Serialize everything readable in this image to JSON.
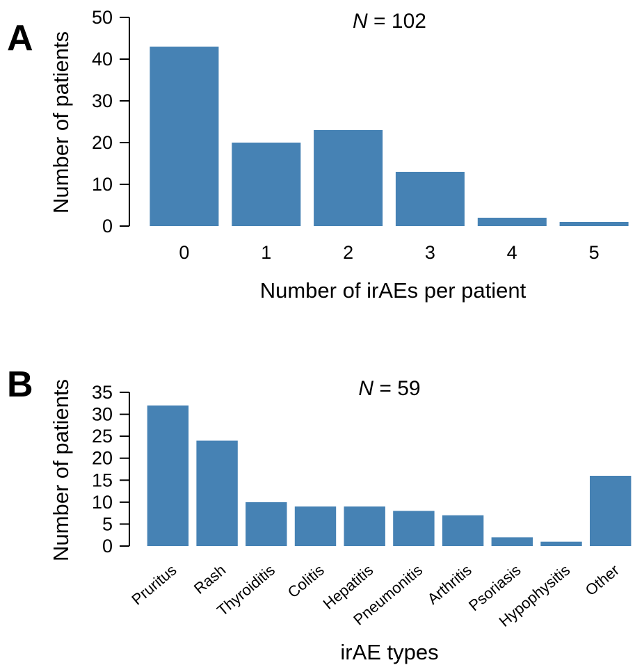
{
  "chart_data": [
    {
      "panel": "A",
      "type": "bar",
      "title": "",
      "annotation": {
        "symbol": "N",
        "text": " = 102"
      },
      "categories": [
        "0",
        "1",
        "2",
        "3",
        "4",
        "5"
      ],
      "values": [
        43,
        20,
        23,
        13,
        2,
        1
      ],
      "xlabel": "Number of irAEs per patient",
      "ylabel": "Number of patients",
      "ylim": [
        0,
        50
      ],
      "yticks": [
        0,
        10,
        20,
        30,
        40,
        50
      ],
      "grid": false,
      "bar_color": "#4682b4"
    },
    {
      "panel": "B",
      "type": "bar",
      "title": "",
      "annotation": {
        "symbol": "N",
        "text": " = 59"
      },
      "categories": [
        "Pruritus",
        "Rash",
        "Thyroiditis",
        "Colitis",
        "Hepatitis",
        "Pneumonitis",
        "Arthritis",
        "Psoriasis",
        "Hypophysitis",
        "Other"
      ],
      "values": [
        32,
        24,
        10,
        9,
        9,
        8,
        7,
        2,
        1,
        16
      ],
      "xlabel": "irAE types",
      "ylabel": "Number of patients",
      "ylim": [
        0,
        35
      ],
      "yticks": [
        0,
        5,
        10,
        15,
        20,
        25,
        30,
        35
      ],
      "grid": false,
      "bar_color": "#4682b4"
    }
  ]
}
